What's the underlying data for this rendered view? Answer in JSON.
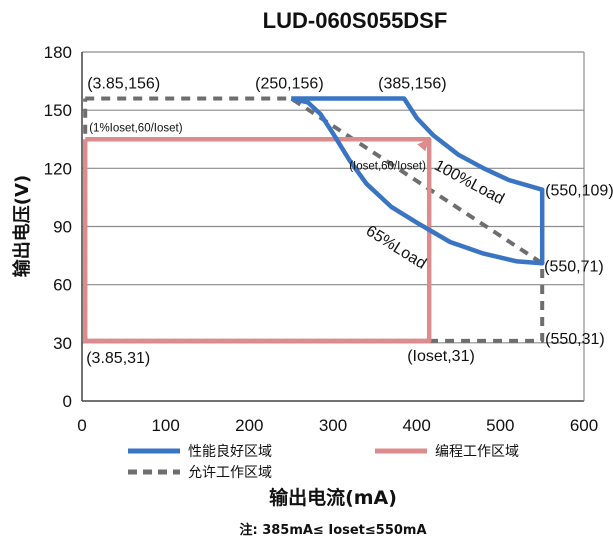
{
  "chart_data": {
    "type": "line",
    "title": "LUD-060S055DSF",
    "xlabel": "输出电流(mA)",
    "ylabel": "输出电压(V)",
    "note": "注: 385mA≤ Ioset≤550mA",
    "xlim": [
      0,
      600
    ],
    "ylim": [
      0,
      180
    ],
    "x_ticks": [
      "0",
      "100",
      "200",
      "300",
      "400",
      "500",
      "600"
    ],
    "y_ticks": [
      "0",
      "30",
      "60",
      "90",
      "120",
      "150",
      "180"
    ],
    "grid": "horizontal",
    "colors": {
      "blue": "#3a75c4",
      "red": "#dc8c8c",
      "gray": "#6e6e6e"
    },
    "series": [
      {
        "name": "性能良好区域",
        "style": "solid-thick",
        "color": "#3a75c4",
        "points": [
          [
            250,
            156
          ],
          [
            385,
            156
          ],
          [
            400,
            146
          ],
          [
            420,
            137
          ],
          [
            450,
            127
          ],
          [
            480,
            120
          ],
          [
            510,
            114
          ],
          [
            550,
            109
          ],
          [
            550,
            71
          ],
          [
            520,
            72
          ],
          [
            480,
            76
          ],
          [
            440,
            82
          ],
          [
            400,
            92
          ],
          [
            370,
            100
          ],
          [
            340,
            112
          ],
          [
            320,
            124
          ],
          [
            300,
            138
          ],
          [
            285,
            148
          ],
          [
            270,
            154
          ],
          [
            250,
            156
          ]
        ]
      },
      {
        "name": "编程工作区域",
        "style": "solid-thick",
        "color": "#dc8c8c",
        "points": [
          [
            3.85,
            135
          ],
          [
            415,
            135
          ],
          [
            415,
            31
          ],
          [
            3.85,
            31
          ],
          [
            3.85,
            135
          ]
        ]
      },
      {
        "name": "允许工作区域",
        "style": "dashed",
        "color": "#6e6e6e",
        "points": [
          [
            3.85,
            156
          ],
          [
            250,
            156
          ],
          [
            250,
            156
          ],
          [
            550,
            71
          ],
          [
            550,
            31
          ],
          [
            3.85,
            31
          ],
          [
            3.85,
            156
          ]
        ]
      }
    ],
    "annotations": [
      {
        "text": "(3.85,156)",
        "x": 3.85,
        "y": 156,
        "size": "lg"
      },
      {
        "text": "(250,156)",
        "x": 250,
        "y": 156,
        "size": "lg"
      },
      {
        "text": "(385,156)",
        "x": 385,
        "y": 156,
        "size": "lg"
      },
      {
        "text": "(550,109)",
        "x": 550,
        "y": 109,
        "size": "lg"
      },
      {
        "text": "(550,71)",
        "x": 550,
        "y": 71,
        "size": "lg"
      },
      {
        "text": "(550,31)",
        "x": 550,
        "y": 31,
        "size": "lg"
      },
      {
        "text": "(3.85,31)",
        "x": 3.85,
        "y": 31,
        "size": "lg"
      },
      {
        "text": "(Ioset,31)",
        "x": 415,
        "y": 31,
        "size": "lg"
      },
      {
        "text": "(1%Ioset,60/Ioset)",
        "x": 3.85,
        "y": 135,
        "size": "sm"
      },
      {
        "text": "(Ioset,60/Ioset)",
        "x": 415,
        "y": 135,
        "size": "sm"
      },
      {
        "text": "100%Load",
        "x": 470,
        "y": 124,
        "size": "lg"
      },
      {
        "text": "65%Load",
        "x": 380,
        "y": 90,
        "size": "lg"
      }
    ],
    "legend": [
      {
        "label": "性能良好区域",
        "color": "#3a75c4",
        "style": "solid"
      },
      {
        "label": "编程工作区域",
        "color": "#dc8c8c",
        "style": "solid"
      },
      {
        "label": "允许工作区域",
        "color": "#6e6e6e",
        "style": "dashed"
      }
    ]
  }
}
